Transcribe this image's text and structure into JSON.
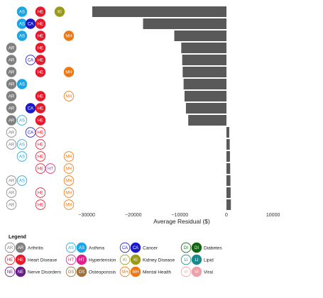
{
  "chart_data": {
    "type": "bar",
    "orientation": "horizontal",
    "xlabel": "Average Residual ($)",
    "xlim": [
      -32000,
      12000
    ],
    "xticks": [
      -30000,
      -20000,
      -10000,
      0,
      10000
    ],
    "xtick_labels": [
      "−30000",
      "−20000",
      "−10000",
      "0",
      "10000"
    ],
    "bar_color": "#595959",
    "conditions": [
      "AR",
      "AS",
      "CA",
      "HE",
      "HT",
      "KI",
      "MH"
    ],
    "rows": [
      {
        "codes": [
          "AS",
          "HE",
          "KI"
        ],
        "filled": [
          "AS",
          "HE",
          "KI"
        ],
        "value": -28800
      },
      {
        "codes": [
          "AS",
          "CA",
          "HE"
        ],
        "filled": [
          "AS",
          "CA",
          "HE"
        ],
        "value": -17900
      },
      {
        "codes": [
          "AS",
          "HE",
          "MH"
        ],
        "filled": [
          "AS",
          "HE",
          "MH"
        ],
        "value": -11200
      },
      {
        "codes": [
          "AR",
          "HE"
        ],
        "filled": [
          "AR",
          "HE"
        ],
        "value": -9700
      },
      {
        "codes": [
          "AR",
          "CA",
          "HE"
        ],
        "filled": [
          "AR",
          "HE"
        ],
        "value": -9500
      },
      {
        "codes": [
          "AR",
          "HE",
          "MH"
        ],
        "filled": [
          "AR",
          "HE",
          "MH"
        ],
        "value": -9400
      },
      {
        "codes": [
          "AR",
          "AS"
        ],
        "filled": [
          "AR",
          "AS"
        ],
        "value": -9200
      },
      {
        "codes": [
          "AR",
          "HE",
          "MH"
        ],
        "filled": [
          "AR",
          "HE"
        ],
        "value": -9000
      },
      {
        "codes": [
          "AR",
          "CA",
          "HE"
        ],
        "filled": [
          "AR",
          "CA",
          "HE"
        ],
        "value": -8700
      },
      {
        "codes": [
          "AR",
          "AS",
          "HE"
        ],
        "filled": [
          "AR",
          "HE"
        ],
        "value": -8200
      },
      {
        "codes": [
          "AR",
          "CA",
          "HE"
        ],
        "filled": [],
        "value": 600
      },
      {
        "codes": [
          "AR",
          "AS",
          "HE"
        ],
        "filled": [],
        "value": 700
      },
      {
        "codes": [
          "AS",
          "HE",
          "MH"
        ],
        "filled": [],
        "value": 750
      },
      {
        "codes": [
          "HE",
          "HT",
          "MH"
        ],
        "filled": [],
        "value": 800
      },
      {
        "codes": [
          "AR",
          "AS",
          "MH"
        ],
        "filled": [],
        "value": 850
      },
      {
        "codes": [
          "AR",
          "HE",
          "MH"
        ],
        "filled": [],
        "value": 900
      },
      {
        "codes": [
          "AR",
          "HE",
          "MH"
        ],
        "filled": [],
        "value": 950
      }
    ],
    "legend": {
      "title": "Legend",
      "placement": "bottom",
      "items": [
        {
          "code": "AR",
          "label": "Arthritis",
          "color": "#808080"
        },
        {
          "code": "AS",
          "label": "Asthma",
          "color": "#1aa5e6"
        },
        {
          "code": "CA",
          "label": "Cancer",
          "color": "#1a1acc"
        },
        {
          "code": "DI",
          "label": "Diabetes",
          "color": "#116611"
        },
        {
          "code": "HE",
          "label": "Heart Disease",
          "color": "#e6192b"
        },
        {
          "code": "HT",
          "label": "Hypertension",
          "color": "#e0218a"
        },
        {
          "code": "KI",
          "label": "Kidney Disease",
          "color": "#9a9a1a"
        },
        {
          "code": "LI",
          "label": "Lipid",
          "color": "#1a8a8a"
        },
        {
          "code": "NE",
          "label": "Nerve Disorders",
          "color": "#6a1a8a"
        },
        {
          "code": "OS",
          "label": "Osteoporosis",
          "color": "#a0703a"
        },
        {
          "code": "MH",
          "label": "Mental Health",
          "color": "#ee7711"
        },
        {
          "code": "VI",
          "label": "Viral",
          "color": "#f0a0a8"
        }
      ]
    }
  }
}
